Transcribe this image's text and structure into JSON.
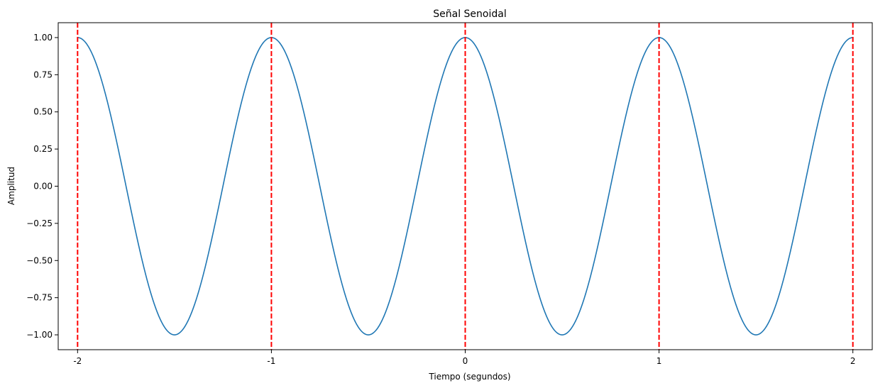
{
  "chart_data": {
    "type": "line",
    "title": "Señal Senoidal",
    "xlabel": "Tiempo (segundos)",
    "ylabel": "Amplitud",
    "xlim": [
      -2.1,
      2.1
    ],
    "ylim": [
      -1.1,
      1.1
    ],
    "x_ticks": [
      -2,
      -1,
      0,
      1,
      2
    ],
    "x_tick_labels": [
      "-2",
      "-1",
      "0",
      "1",
      "2"
    ],
    "y_ticks": [
      1.0,
      0.75,
      0.5,
      0.25,
      0.0,
      -0.25,
      -0.5,
      -0.75,
      -1.0
    ],
    "y_tick_labels": [
      "1.00",
      "0.75",
      "0.50",
      "0.25",
      "0.00",
      "−0.25",
      "−0.50",
      "−0.75",
      "−1.00"
    ],
    "grid": false,
    "series": [
      {
        "function": "cos(2*pi*t)",
        "frequency_hz": 1,
        "amplitude": 1,
        "t_range": [
          -2,
          2
        ],
        "color": "#1f77b4"
      }
    ],
    "vlines": {
      "x": [
        -2,
        -1,
        0,
        1,
        2
      ],
      "color": "#ff0000",
      "style": "dashed"
    }
  }
}
